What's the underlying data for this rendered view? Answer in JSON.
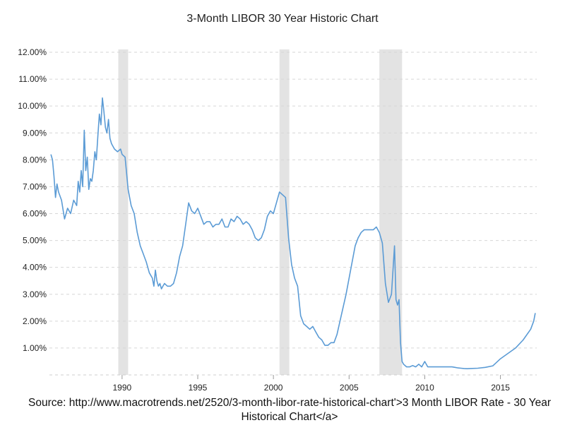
{
  "chart_data": {
    "type": "line",
    "title": "3-Month LIBOR 30 Year Historic Chart",
    "xlabel": "",
    "ylabel": "",
    "x_ticks": [
      "1990",
      "1995",
      "2000",
      "2005",
      "2010",
      "2015"
    ],
    "y_ticks": [
      "12.00%",
      "11.00%",
      "10.00%",
      "9.00%",
      "8.00%",
      "7.00%",
      "6.00%",
      "5.00%",
      "4.00%",
      "3.00%",
      "2.00%",
      "1.00%"
    ],
    "xlim": [
      1985.2,
      2017.4
    ],
    "ylim": [
      0,
      12
    ],
    "grid": true,
    "line_color": "#5b9bd5",
    "recession_color": "#e3e3e3",
    "recessions": [
      [
        1989.75,
        1990.4
      ],
      [
        2000.4,
        2001.05
      ],
      [
        2007.0,
        2008.5
      ]
    ],
    "series": [
      {
        "x": [
          1985.3,
          1985.4,
          1985.5,
          1985.6,
          1985.7,
          1985.8,
          1986.0,
          1986.2,
          1986.4,
          1986.6,
          1986.8,
          1987.0,
          1987.1,
          1987.2,
          1987.3,
          1987.4,
          1987.5,
          1987.6,
          1987.7,
          1987.8,
          1987.9,
          1988.0,
          1988.1,
          1988.2,
          1988.3,
          1988.4,
          1988.5,
          1988.6,
          1988.7,
          1988.8,
          1988.9,
          1989.0,
          1989.1,
          1989.2,
          1989.3,
          1989.5,
          1989.7,
          1989.9,
          1990.0,
          1990.2,
          1990.4,
          1990.6,
          1990.8,
          1991.0,
          1991.2,
          1991.4,
          1991.6,
          1991.8,
          1992.0,
          1992.1,
          1992.2,
          1992.3,
          1992.4,
          1992.5,
          1992.6,
          1992.7,
          1992.8,
          1993.0,
          1993.2,
          1993.4,
          1993.6,
          1993.8,
          1994.0,
          1994.2,
          1994.4,
          1994.6,
          1994.8,
          1995.0,
          1995.2,
          1995.4,
          1995.6,
          1995.8,
          1996.0,
          1996.2,
          1996.4,
          1996.6,
          1996.8,
          1997.0,
          1997.2,
          1997.4,
          1997.6,
          1997.8,
          1998.0,
          1998.2,
          1998.4,
          1998.6,
          1998.8,
          1999.0,
          1999.2,
          1999.4,
          1999.6,
          1999.8,
          2000.0,
          2000.2,
          2000.4,
          2000.6,
          2000.8,
          2001.0,
          2001.2,
          2001.4,
          2001.6,
          2001.8,
          2002.0,
          2002.2,
          2002.4,
          2002.6,
          2002.8,
          2003.0,
          2003.2,
          2003.4,
          2003.6,
          2003.8,
          2004.0,
          2004.2,
          2004.4,
          2004.6,
          2004.8,
          2005.0,
          2005.2,
          2005.4,
          2005.6,
          2005.8,
          2006.0,
          2006.2,
          2006.4,
          2006.6,
          2006.8,
          2007.0,
          2007.2,
          2007.4,
          2007.6,
          2007.8,
          2008.0,
          2008.1,
          2008.2,
          2008.3,
          2008.4,
          2008.5,
          2008.6,
          2008.8,
          2009.0,
          2009.2,
          2009.4,
          2009.6,
          2009.8,
          2010.0,
          2010.2,
          2010.4,
          2010.6,
          2010.8,
          2011.0,
          2011.2,
          2011.4,
          2011.6,
          2011.8,
          2012.0,
          2012.2,
          2012.4,
          2012.6,
          2012.8,
          2013.0,
          2013.5,
          2014.0,
          2014.5,
          2015.0,
          2015.5,
          2016.0,
          2016.5,
          2017.0,
          2017.2,
          2017.3
        ],
        "y": [
          8.2,
          8.0,
          7.4,
          6.6,
          7.1,
          6.8,
          6.5,
          5.8,
          6.2,
          6.0,
          6.5,
          6.3,
          7.2,
          6.8,
          7.6,
          7.0,
          9.1,
          7.6,
          8.1,
          6.9,
          7.3,
          7.2,
          7.6,
          8.3,
          8.0,
          8.9,
          9.7,
          9.3,
          10.3,
          9.8,
          9.2,
          9.0,
          9.5,
          8.8,
          8.6,
          8.4,
          8.3,
          8.4,
          8.2,
          8.1,
          6.9,
          6.3,
          6.0,
          5.3,
          4.8,
          4.5,
          4.2,
          3.8,
          3.6,
          3.3,
          3.9,
          3.5,
          3.3,
          3.4,
          3.2,
          3.3,
          3.4,
          3.3,
          3.3,
          3.4,
          3.8,
          4.4,
          4.8,
          5.6,
          6.4,
          6.1,
          6.0,
          6.2,
          5.9,
          5.6,
          5.7,
          5.7,
          5.5,
          5.6,
          5.6,
          5.8,
          5.5,
          5.5,
          5.8,
          5.7,
          5.9,
          5.8,
          5.6,
          5.7,
          5.6,
          5.4,
          5.1,
          5.0,
          5.1,
          5.4,
          5.9,
          6.1,
          6.0,
          6.4,
          6.8,
          6.7,
          6.6,
          5.1,
          4.1,
          3.6,
          3.3,
          2.2,
          1.9,
          1.8,
          1.7,
          1.8,
          1.6,
          1.4,
          1.3,
          1.1,
          1.1,
          1.2,
          1.2,
          1.5,
          2.0,
          2.5,
          3.0,
          3.6,
          4.2,
          4.8,
          5.1,
          5.3,
          5.4,
          5.4,
          5.4,
          5.4,
          5.5,
          5.3,
          4.9,
          3.4,
          2.7,
          3.0,
          4.8,
          2.8,
          2.6,
          2.8,
          1.2,
          0.5,
          0.4,
          0.3,
          0.3,
          0.35,
          0.3,
          0.4,
          0.3,
          0.5,
          0.3,
          0.3,
          0.3,
          0.3,
          0.3,
          0.3,
          0.3,
          0.3,
          0.3,
          0.28,
          0.26,
          0.25,
          0.24,
          0.23,
          0.24,
          0.25,
          0.28,
          0.34,
          0.6,
          0.8,
          1.0,
          1.3,
          1.7,
          2.0,
          2.3
        ]
      }
    ]
  },
  "source_note": "Source:  http://www.macrotrends.net/2520/3-month-libor-rate-historical-chart'>3 Month LIBOR Rate - 30 Year Historical Chart</a>"
}
